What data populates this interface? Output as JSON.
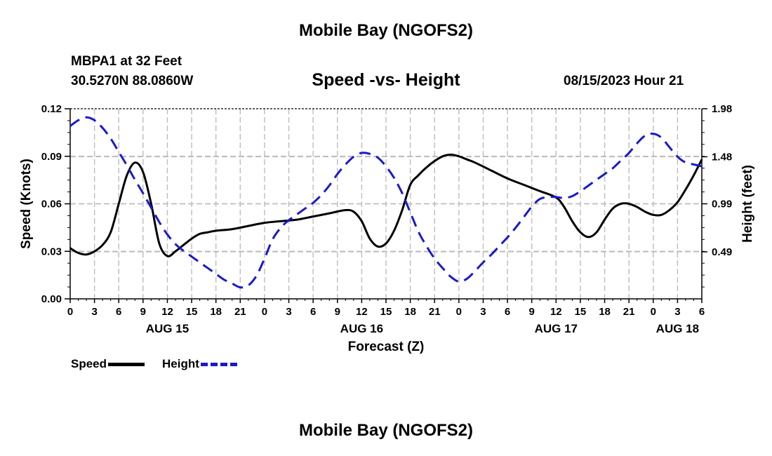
{
  "header": {
    "title": "Mobile Bay (NGOFS2)",
    "station": "MBPA1 at 32 Feet",
    "coords": "30.5270N  88.0860W",
    "chart_title": "Speed -vs- Height",
    "datetime": "08/15/2023 Hour 21"
  },
  "footer": {
    "title": "Mobile Bay (NGOFS2)"
  },
  "legend": {
    "items": [
      {
        "label": "Speed",
        "color": "#000000",
        "dash": "solid"
      },
      {
        "label": "Height",
        "color": "#1a1acc",
        "dash": "dashed"
      }
    ]
  },
  "chart_data": {
    "type": "line",
    "title": "Speed -vs- Height",
    "xlabel": "Forecast (Z)",
    "ylabel": "Speed (Knots)",
    "y2label": "Height (feet)",
    "xlim": [
      0,
      78
    ],
    "ylim": [
      0,
      0.12
    ],
    "y2lim": [
      0,
      1.98
    ],
    "x_ticks": [
      0,
      3,
      6,
      9,
      12,
      15,
      18,
      21,
      24,
      27,
      30,
      33,
      36,
      39,
      42,
      45,
      48,
      51,
      54,
      57,
      60,
      63,
      66,
      69,
      72,
      75,
      78
    ],
    "x_tick_labels": [
      "0",
      "3",
      "6",
      "9",
      "12",
      "15",
      "18",
      "21",
      "0",
      "3",
      "6",
      "9",
      "12",
      "15",
      "18",
      "21",
      "0",
      "3",
      "6",
      "9",
      "12",
      "15",
      "18",
      "21",
      "0",
      "3",
      "6"
    ],
    "date_labels": [
      {
        "x": 12,
        "label": "AUG 15"
      },
      {
        "x": 36,
        "label": "AUG 16"
      },
      {
        "x": 60,
        "label": "AUG 17"
      },
      {
        "x": 75,
        "label": "AUG 18"
      }
    ],
    "y_ticks": [
      0,
      0.03,
      0.06,
      0.09,
      0.12
    ],
    "y_tick_labels": [
      "0.00",
      "0.03",
      "0.06",
      "0.09",
      "0.12"
    ],
    "y2_ticks": [
      0.49,
      0.99,
      1.48,
      1.98
    ],
    "y2_tick_labels": [
      "0.49",
      "0.99",
      "1.48",
      "1.98"
    ],
    "grid": true,
    "legend_position": "bottom-left",
    "series": [
      {
        "name": "Speed",
        "axis": "left",
        "color": "#000000",
        "x": [
          0,
          1,
          2,
          3,
          4,
          5,
          6,
          7,
          8,
          9,
          10,
          11,
          12,
          13,
          14,
          15,
          16,
          17,
          18,
          20,
          22,
          24,
          26,
          28,
          30,
          32,
          34,
          35,
          36,
          37,
          38,
          39,
          40,
          41,
          42,
          43,
          44,
          45,
          46,
          47,
          48,
          49,
          50,
          52,
          54,
          56,
          58,
          60,
          61,
          62,
          63,
          64,
          65,
          66,
          67,
          68,
          69,
          70,
          71,
          72,
          73,
          74,
          75,
          76,
          77,
          78
        ],
        "values": [
          0.032,
          0.029,
          0.028,
          0.03,
          0.034,
          0.042,
          0.06,
          0.078,
          0.086,
          0.08,
          0.06,
          0.035,
          0.027,
          0.03,
          0.034,
          0.038,
          0.041,
          0.042,
          0.043,
          0.044,
          0.046,
          0.048,
          0.049,
          0.05,
          0.052,
          0.054,
          0.056,
          0.055,
          0.049,
          0.038,
          0.033,
          0.035,
          0.043,
          0.056,
          0.072,
          0.078,
          0.083,
          0.087,
          0.09,
          0.091,
          0.09,
          0.088,
          0.086,
          0.081,
          0.076,
          0.072,
          0.068,
          0.064,
          0.058,
          0.049,
          0.042,
          0.039,
          0.042,
          0.05,
          0.057,
          0.06,
          0.06,
          0.058,
          0.055,
          0.053,
          0.053,
          0.056,
          0.061,
          0.069,
          0.078,
          0.088
        ]
      },
      {
        "name": "Height",
        "axis": "right",
        "color": "#1a1acc",
        "x": [
          0,
          1,
          2,
          3,
          4,
          5,
          6,
          7,
          8,
          9,
          10,
          11,
          12,
          13,
          14,
          15,
          16,
          17,
          18,
          19,
          20,
          21,
          22,
          23,
          24,
          25,
          26,
          27,
          28,
          29,
          30,
          31,
          32,
          33,
          34,
          35,
          36,
          37,
          38,
          39,
          40,
          41,
          42,
          43,
          44,
          45,
          46,
          47,
          48,
          49,
          50,
          51,
          52,
          53,
          54,
          55,
          56,
          57,
          58,
          59,
          60,
          61,
          62,
          63,
          64,
          65,
          66,
          67,
          68,
          69,
          70,
          71,
          72,
          73,
          74,
          75,
          76,
          77,
          78
        ],
        "values": [
          1.8,
          1.86,
          1.89,
          1.86,
          1.78,
          1.67,
          1.53,
          1.39,
          1.24,
          1.1,
          0.95,
          0.8,
          0.67,
          0.57,
          0.5,
          0.44,
          0.38,
          0.32,
          0.26,
          0.2,
          0.16,
          0.12,
          0.14,
          0.24,
          0.42,
          0.62,
          0.74,
          0.82,
          0.88,
          0.94,
          1.0,
          1.08,
          1.18,
          1.3,
          1.4,
          1.48,
          1.52,
          1.51,
          1.47,
          1.38,
          1.26,
          1.1,
          0.9,
          0.7,
          0.55,
          0.42,
          0.32,
          0.23,
          0.18,
          0.21,
          0.29,
          0.38,
          0.46,
          0.55,
          0.64,
          0.74,
          0.85,
          0.96,
          1.04,
          1.06,
          1.06,
          1.05,
          1.07,
          1.12,
          1.18,
          1.24,
          1.3,
          1.36,
          1.44,
          1.52,
          1.62,
          1.7,
          1.72,
          1.68,
          1.58,
          1.48,
          1.42,
          1.4,
          1.38
        ]
      }
    ]
  }
}
